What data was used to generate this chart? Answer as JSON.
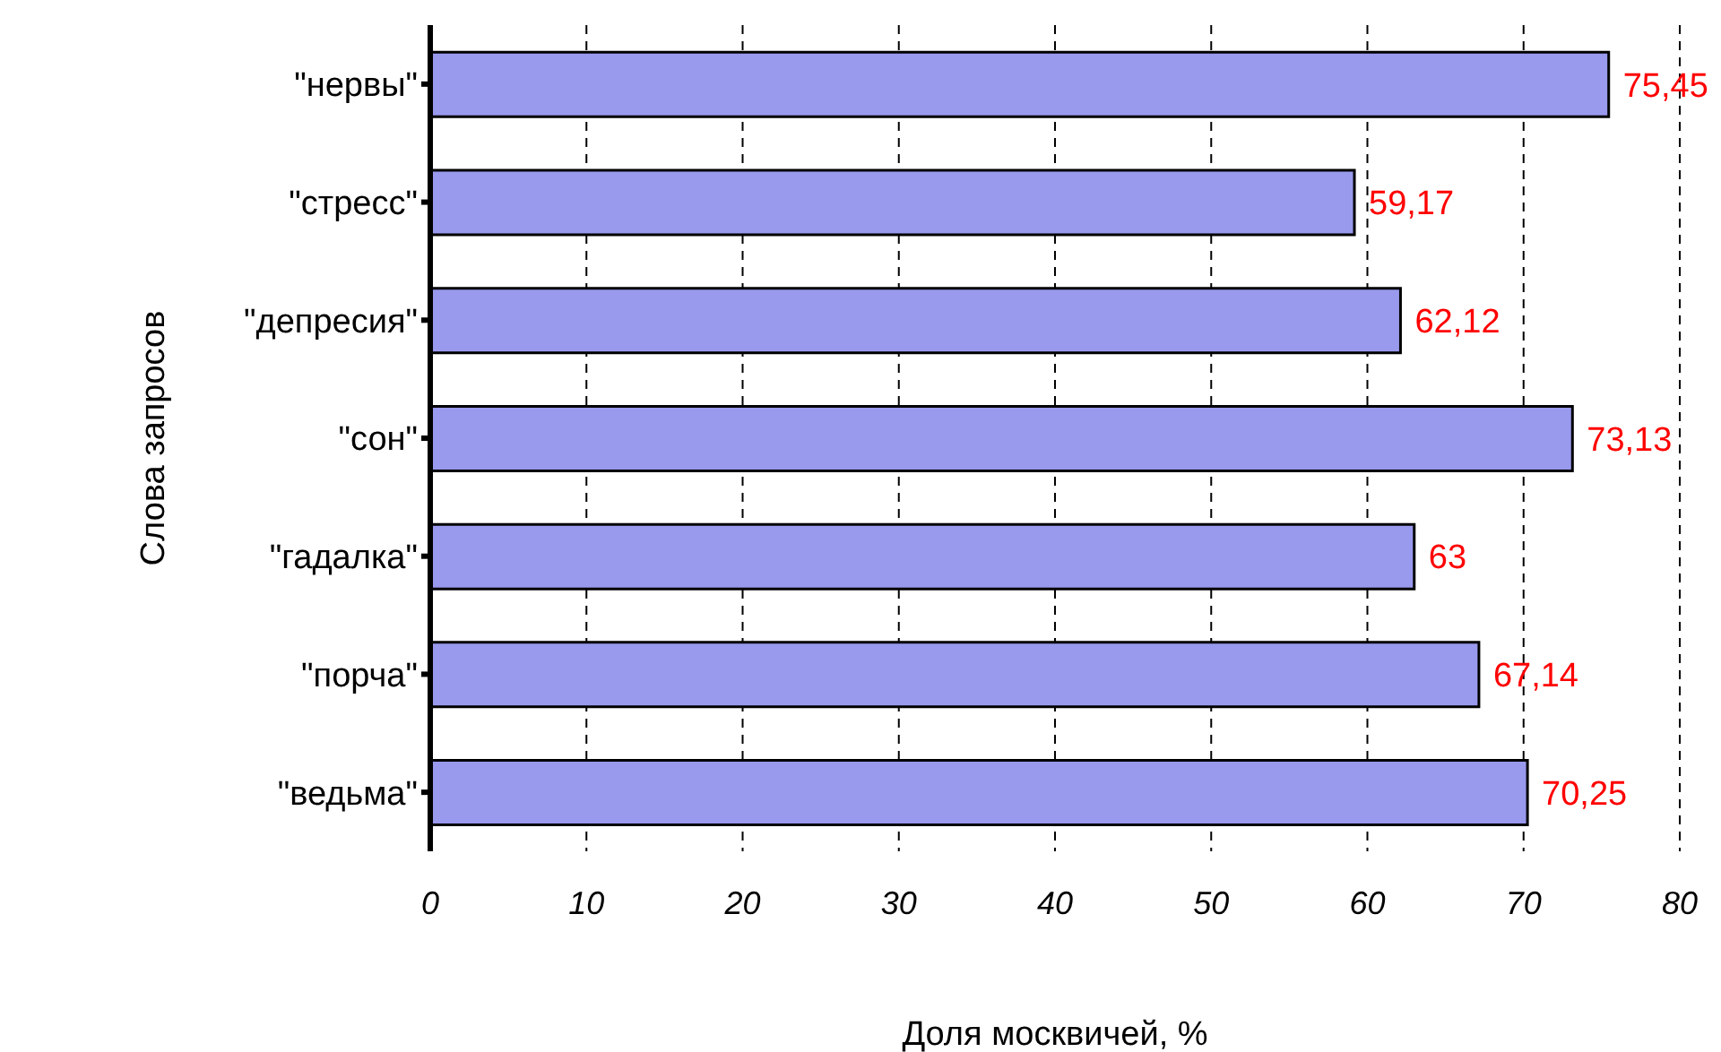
{
  "chart_data": {
    "type": "bar",
    "orientation": "horizontal",
    "categories": [
      "\"нервы\"",
      "\"стресс\"",
      "\"депресия\"",
      "\"сон\"",
      "\"гадалка\"",
      "\"порча\"",
      "\"ведьма\""
    ],
    "values": [
      75.45,
      59.17,
      62.12,
      73.13,
      63,
      67.14,
      70.25
    ],
    "value_labels": [
      "75,45",
      "59,17",
      "62,12",
      "73,13",
      "63",
      "67,14",
      "70,25"
    ],
    "color": "#9999ee",
    "xlim": [
      0,
      80
    ],
    "xticks": [
      0,
      10,
      20,
      30,
      40,
      50,
      60,
      70,
      80
    ],
    "grid": "x",
    "xlabel": "Доля москвичей, %",
    "ylabel": "Слова запросов"
  }
}
